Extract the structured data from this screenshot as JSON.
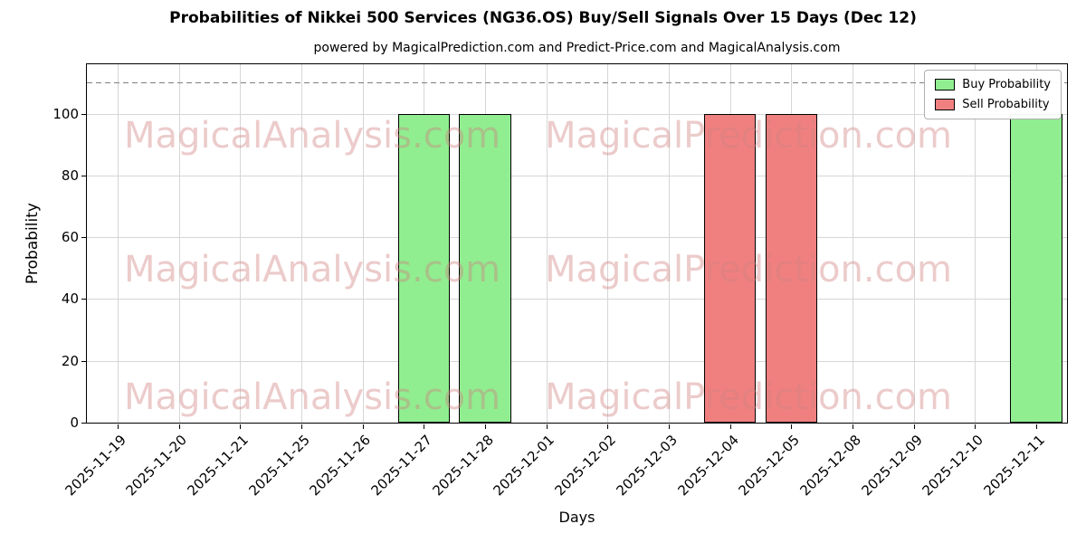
{
  "subtitle": "powered by MagicalPrediction.com and Predict-Price.com and MagicalAnalysis.com",
  "watermarks": {
    "left": "MagicalAnalysis.com",
    "right": "MagicalPrediction.com"
  },
  "chart_data": {
    "type": "bar",
    "title": "Probabilities of Nikkei 500 Services (NG36.OS) Buy/Sell Signals Over 15 Days (Dec 12)",
    "xlabel": "Days",
    "ylabel": "Probability",
    "ylim": [
      0,
      116
    ],
    "yticks": [
      0,
      20,
      40,
      60,
      80,
      100
    ],
    "grid": true,
    "dashed_line_y": 110,
    "legend_position": "upper right",
    "categories": [
      "2025-11-19",
      "2025-11-20",
      "2025-11-21",
      "2025-11-25",
      "2025-11-26",
      "2025-11-27",
      "2025-11-28",
      "2025-12-01",
      "2025-12-02",
      "2025-12-03",
      "2025-12-04",
      "2025-12-05",
      "2025-12-08",
      "2025-12-09",
      "2025-12-10",
      "2025-12-11"
    ],
    "series": [
      {
        "name": "Buy Probability",
        "color": "#90EE90",
        "values": [
          0,
          0,
          0,
          0,
          0,
          100,
          100,
          0,
          0,
          0,
          0,
          0,
          0,
          0,
          0,
          100
        ]
      },
      {
        "name": "Sell Probability",
        "color": "#F08080",
        "values": [
          0,
          0,
          0,
          0,
          0,
          0,
          0,
          0,
          0,
          0,
          100,
          100,
          0,
          0,
          0,
          0
        ]
      }
    ]
  }
}
